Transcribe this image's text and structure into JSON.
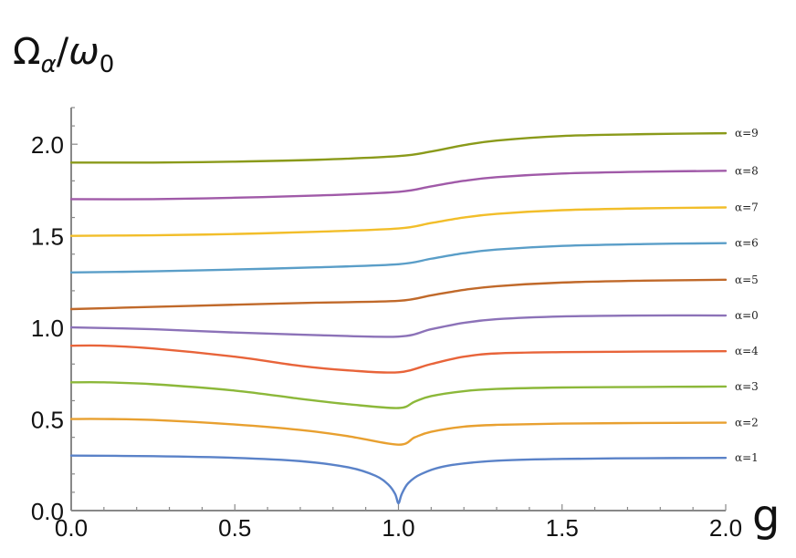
{
  "chart_data": {
    "type": "line",
    "ylabel_main": "Ω",
    "ylabel_sub": "α",
    "ylabel_sep": "/",
    "ylabel_main2": "ω",
    "ylabel_sub2": "0",
    "xlabel": "g",
    "xlim": [
      0,
      2
    ],
    "ylim": [
      0,
      2.2
    ],
    "x_ticks": [
      0,
      0.5,
      1,
      1.5,
      2
    ],
    "x_tick_labels": [
      "0.0",
      "0.5",
      "1.0",
      "1.5",
      "2.0"
    ],
    "y_ticks": [
      0,
      0.5,
      1,
      1.5,
      2
    ],
    "y_tick_labels": [
      "0.0",
      "0.5",
      "1.0",
      "1.5",
      "2.0"
    ],
    "grid": false,
    "series": [
      {
        "name": "α=9",
        "color": "#8a9a1a",
        "x": [
          0,
          0.25,
          0.5,
          0.75,
          1.0,
          1.1,
          1.2,
          1.3,
          1.5,
          1.75,
          2.0
        ],
        "y": [
          1.9,
          1.9,
          1.905,
          1.915,
          1.935,
          1.96,
          1.995,
          2.02,
          2.045,
          2.055,
          2.06
        ]
      },
      {
        "name": "α=8",
        "color": "#a05aa8",
        "x": [
          0,
          0.25,
          0.5,
          0.75,
          1.0,
          1.1,
          1.2,
          1.3,
          1.5,
          1.75,
          2.0
        ],
        "y": [
          1.7,
          1.7,
          1.708,
          1.72,
          1.74,
          1.77,
          1.8,
          1.82,
          1.84,
          1.85,
          1.855
        ]
      },
      {
        "name": "α=7",
        "color": "#f2be2a",
        "x": [
          0,
          0.25,
          0.5,
          0.75,
          1.0,
          1.1,
          1.2,
          1.3,
          1.5,
          1.75,
          2.0
        ],
        "y": [
          1.5,
          1.503,
          1.51,
          1.522,
          1.54,
          1.57,
          1.6,
          1.62,
          1.64,
          1.65,
          1.655
        ]
      },
      {
        "name": "α=6",
        "color": "#5a9ec8",
        "x": [
          0,
          0.25,
          0.5,
          0.75,
          1.0,
          1.1,
          1.2,
          1.3,
          1.5,
          1.75,
          2.0
        ],
        "y": [
          1.3,
          1.306,
          1.316,
          1.328,
          1.345,
          1.375,
          1.405,
          1.425,
          1.445,
          1.455,
          1.46
        ]
      },
      {
        "name": "α=5",
        "color": "#c0692a",
        "x": [
          0,
          0.25,
          0.5,
          0.75,
          1.0,
          1.1,
          1.2,
          1.3,
          1.5,
          1.75,
          2.0
        ],
        "y": [
          1.1,
          1.112,
          1.124,
          1.135,
          1.145,
          1.175,
          1.205,
          1.225,
          1.245,
          1.255,
          1.26
        ]
      },
      {
        "name": "α=0",
        "color": "#8c72b8",
        "x": [
          0,
          0.25,
          0.5,
          0.75,
          1.0,
          1.1,
          1.2,
          1.3,
          1.5,
          1.75,
          2.0
        ],
        "y": [
          1.0,
          0.99,
          0.972,
          0.958,
          0.95,
          0.99,
          1.025,
          1.045,
          1.06,
          1.065,
          1.065
        ]
      },
      {
        "name": "α=4",
        "color": "#e8643a",
        "x": [
          0,
          0.1,
          0.25,
          0.5,
          0.7,
          0.85,
          1.0,
          1.1,
          1.2,
          1.3,
          1.5,
          1.75,
          2.0
        ],
        "y": [
          0.9,
          0.9,
          0.885,
          0.84,
          0.79,
          0.765,
          0.755,
          0.8,
          0.84,
          0.858,
          0.865,
          0.868,
          0.87
        ]
      },
      {
        "name": "α=3",
        "color": "#8cb83a",
        "x": [
          0,
          0.1,
          0.25,
          0.5,
          0.7,
          0.85,
          1.0,
          1.05,
          1.1,
          1.2,
          1.3,
          1.5,
          1.75,
          2.0
        ],
        "y": [
          0.7,
          0.7,
          0.69,
          0.655,
          0.61,
          0.58,
          0.56,
          0.595,
          0.625,
          0.652,
          0.664,
          0.672,
          0.675,
          0.677
        ]
      },
      {
        "name": "α=2",
        "color": "#e8a030",
        "x": [
          0,
          0.1,
          0.25,
          0.5,
          0.7,
          0.85,
          1.0,
          1.05,
          1.1,
          1.2,
          1.3,
          1.5,
          1.75,
          2.0
        ],
        "y": [
          0.5,
          0.5,
          0.495,
          0.47,
          0.44,
          0.405,
          0.36,
          0.4,
          0.43,
          0.458,
          0.468,
          0.475,
          0.478,
          0.48
        ]
      },
      {
        "name": "α=1",
        "color": "#5a82c8",
        "x": [
          0,
          0.25,
          0.5,
          0.7,
          0.85,
          0.93,
          0.97,
          0.99,
          1.0,
          1.01,
          1.03,
          1.07,
          1.15,
          1.3,
          1.5,
          1.75,
          2.0
        ],
        "y": [
          0.3,
          0.297,
          0.288,
          0.27,
          0.235,
          0.19,
          0.14,
          0.09,
          0.04,
          0.09,
          0.15,
          0.2,
          0.245,
          0.272,
          0.282,
          0.286,
          0.288
        ]
      }
    ]
  }
}
